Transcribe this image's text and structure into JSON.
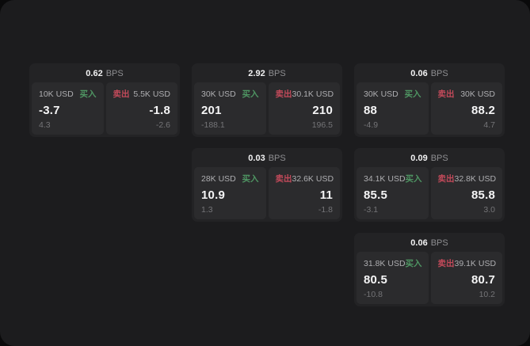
{
  "page": {
    "bg_outer": "#0a0a0b",
    "bg_inner": "#1c1c1e"
  },
  "labels": {
    "buy": "买入",
    "sell": "卖出",
    "bps": "BPS"
  },
  "colors": {
    "buy": "#4f9663",
    "sell": "#c24a5a"
  },
  "cards": [
    {
      "row": 1,
      "col": 1,
      "bps": "0.62",
      "buy": {
        "amount": "10K USD",
        "price": "-3.7",
        "delta": "4.3"
      },
      "sell": {
        "amount": "5.5K USD",
        "price": "-1.8",
        "delta": "-2.6"
      }
    },
    {
      "row": 1,
      "col": 2,
      "bps": "2.92",
      "buy": {
        "amount": "30K USD",
        "price": "201",
        "delta": "-188.1"
      },
      "sell": {
        "amount": "30.1K USD",
        "price": "210",
        "delta": "196.5"
      }
    },
    {
      "row": 1,
      "col": 3,
      "bps": "0.06",
      "buy": {
        "amount": "30K USD",
        "price": "88",
        "delta": "-4.9"
      },
      "sell": {
        "amount": "30K USD",
        "price": "88.2",
        "delta": "4.7"
      }
    },
    {
      "row": 2,
      "col": 2,
      "bps": "0.03",
      "buy": {
        "amount": "28K USD",
        "price": "10.9",
        "delta": "1.3"
      },
      "sell": {
        "amount": "32.6K USD",
        "price": "11",
        "delta": "-1.8"
      }
    },
    {
      "row": 2,
      "col": 3,
      "bps": "0.09",
      "buy": {
        "amount": "34.1K USD",
        "price": "85.5",
        "delta": "-3.1"
      },
      "sell": {
        "amount": "32.8K USD",
        "price": "85.8",
        "delta": "3.0"
      }
    },
    {
      "row": 3,
      "col": 3,
      "bps": "0.06",
      "buy": {
        "amount": "31.8K USD",
        "price": "80.5",
        "delta": "-10.8"
      },
      "sell": {
        "amount": "39.1K USD",
        "price": "80.7",
        "delta": "10.2"
      }
    }
  ]
}
